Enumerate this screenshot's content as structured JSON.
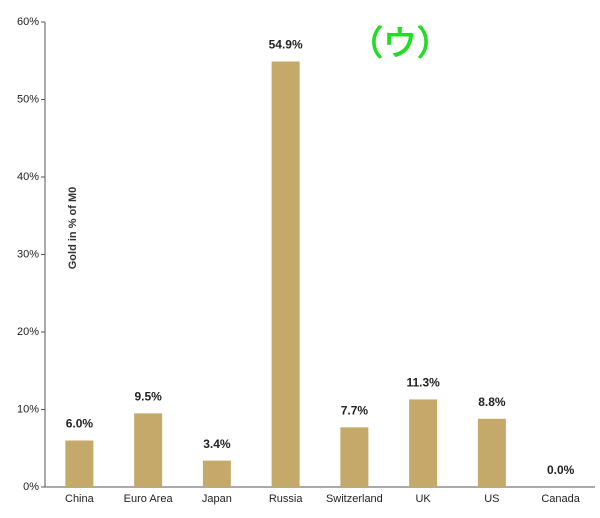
{
  "chart_data": {
    "type": "bar",
    "y_label": "Gold in % of M0",
    "annotation": "（ウ）",
    "categories": [
      "China",
      "Euro Area",
      "Japan",
      "Russia",
      "Switzerland",
      "UK",
      "US",
      "Canada"
    ],
    "values": [
      6.0,
      9.5,
      3.4,
      54.9,
      7.7,
      11.3,
      8.8,
      0.0
    ],
    "value_labels": [
      "6.0%",
      "9.5%",
      "3.4%",
      "54.9%",
      "7.7%",
      "11.3%",
      "8.8%",
      "0.0%"
    ],
    "color": "#c4a96b",
    "ylim": [
      0,
      60
    ],
    "yticks": [
      {
        "value": 0,
        "label": "0%"
      },
      {
        "value": 10,
        "label": "10%"
      },
      {
        "value": 20,
        "label": "20%"
      },
      {
        "value": 30,
        "label": "30%"
      },
      {
        "value": 40,
        "label": "40%"
      },
      {
        "value": 50,
        "label": "50%"
      },
      {
        "value": 60,
        "label": "60%"
      }
    ],
    "grid": false
  }
}
